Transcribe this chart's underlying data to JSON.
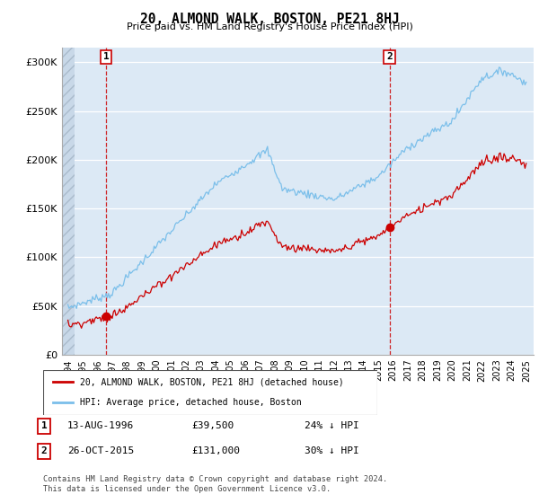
{
  "title": "20, ALMOND WALK, BOSTON, PE21 8HJ",
  "subtitle": "Price paid vs. HM Land Registry's House Price Index (HPI)",
  "hpi_label": "HPI: Average price, detached house, Boston",
  "price_label": "20, ALMOND WALK, BOSTON, PE21 8HJ (detached house)",
  "sale1_date": "13-AUG-1996",
  "sale1_price": 39500,
  "sale1_note": "24% ↓ HPI",
  "sale2_date": "26-OCT-2015",
  "sale2_price": 131000,
  "sale2_note": "30% ↓ HPI",
  "footer": "Contains HM Land Registry data © Crown copyright and database right 2024.\nThis data is licensed under the Open Government Licence v3.0.",
  "hpi_color": "#7bbfea",
  "price_color": "#cc0000",
  "marker_color": "#cc0000",
  "dashed_color": "#cc0000",
  "ylim": [
    0,
    315000
  ],
  "yticks": [
    0,
    50000,
    100000,
    150000,
    200000,
    250000,
    300000
  ],
  "ylabel_prefix": "£",
  "background_color": "#ffffff",
  "plot_bg_color": "#dce9f5"
}
